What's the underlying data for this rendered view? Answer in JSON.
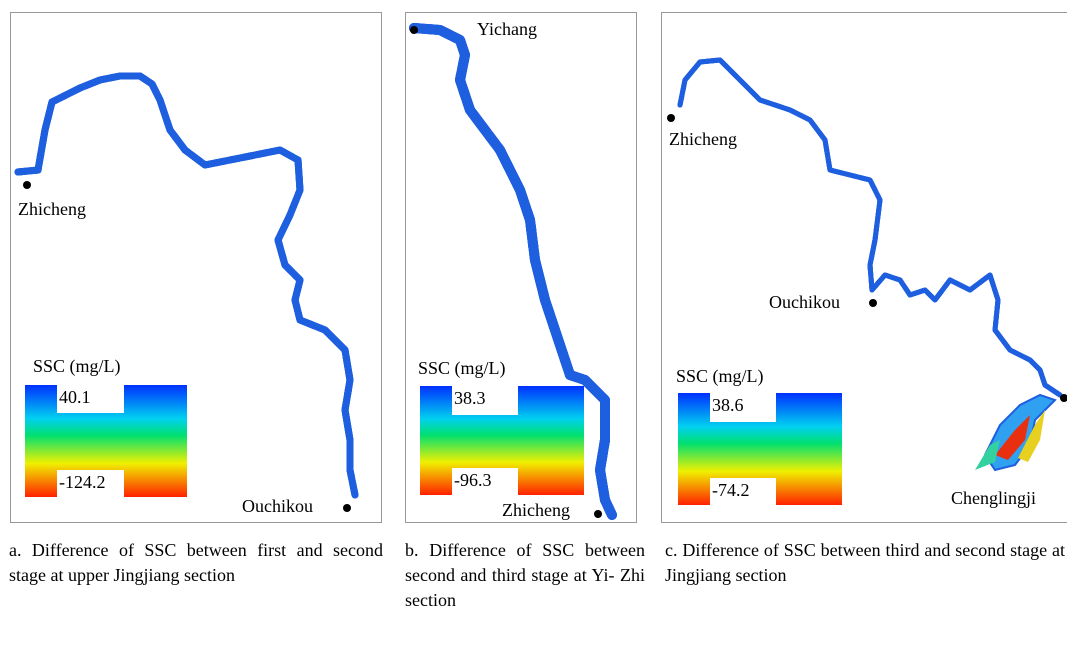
{
  "panels": [
    {
      "legend": {
        "title": "SSC (mg/L)",
        "max": 40.1,
        "min": -124.2
      },
      "places": [
        "Zhicheng",
        "Ouchikou"
      ],
      "caption": "a. Difference of SSC between first and second stage at upper Jingjiang section"
    },
    {
      "legend": {
        "title": "SSC (mg/L)",
        "max": 38.3,
        "min": -96.3
      },
      "places": [
        "Yichang",
        "Zhicheng"
      ],
      "caption": "b. Difference of SSC between second and third stage at Yi- Zhi section"
    },
    {
      "legend": {
        "title": "SSC (mg/L)",
        "max": 38.6,
        "min": -74.2
      },
      "places": [
        "Zhicheng",
        "Ouchikou",
        "Chenglingji"
      ],
      "caption": "c. Difference of SSC between third and second stage at Jingjiang section"
    }
  ]
}
